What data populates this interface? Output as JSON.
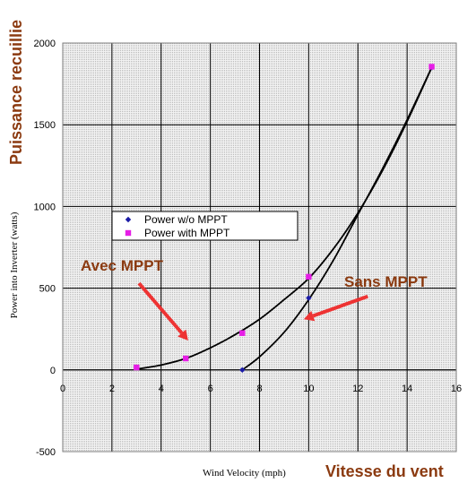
{
  "chart_data": {
    "type": "scatter",
    "x_axis": {
      "label": "Wind Velocity (mph)",
      "label_fr": "Vitesse du vent",
      "range": [
        0,
        16
      ],
      "ticks": [
        "0",
        "2",
        "4",
        "6",
        "8",
        "10",
        "12",
        "14",
        "16"
      ]
    },
    "y_axis": {
      "label": "Power into Inverter (watts)",
      "label_fr": "Puissance recuillie",
      "range": [
        -500,
        2000
      ],
      "ticks": [
        "-500",
        "0",
        "500",
        "1000",
        "1500",
        "2000"
      ]
    },
    "grid": true,
    "series": [
      {
        "name": "Power w/o MPPT",
        "marker": "diamond",
        "color": "#1a1aa6",
        "points": [
          [
            7.3,
            0
          ],
          [
            10.0,
            440
          ],
          [
            15.0,
            1850
          ]
        ]
      },
      {
        "name": "Power with MPPT",
        "marker": "square",
        "color": "#e61ee6",
        "points": [
          [
            3.0,
            15
          ],
          [
            5.0,
            70
          ],
          [
            7.3,
            225
          ],
          [
            10.0,
            570
          ],
          [
            15.0,
            1855
          ]
        ]
      }
    ],
    "trendlines": [
      {
        "series": "Power w/o MPPT",
        "color": "#000000",
        "points": [
          [
            7.3,
            0
          ],
          [
            8.0,
            80
          ],
          [
            9.0,
            230
          ],
          [
            10.0,
            430
          ],
          [
            11.0,
            670
          ],
          [
            12.0,
            950
          ],
          [
            13.0,
            1230
          ],
          [
            14.0,
            1530
          ],
          [
            15.0,
            1850
          ]
        ]
      },
      {
        "series": "Power with MPPT",
        "color": "#000000",
        "points": [
          [
            3.0,
            5
          ],
          [
            4.0,
            30
          ],
          [
            5.0,
            70
          ],
          [
            6.0,
            135
          ],
          [
            7.0,
            215
          ],
          [
            8.0,
            310
          ],
          [
            9.0,
            430
          ],
          [
            10.0,
            560
          ],
          [
            11.0,
            740
          ],
          [
            12.0,
            960
          ],
          [
            13.0,
            1220
          ],
          [
            14.0,
            1520
          ],
          [
            15.0,
            1850
          ]
        ]
      }
    ],
    "legend": {
      "placement": "left-middle"
    },
    "annotations": [
      {
        "text": "Avec MPPT",
        "color": "#8B3A10",
        "arrow_color": "#ee3333",
        "arrow_from": [
          3.1,
          530
        ],
        "arrow_to": [
          5.1,
          180
        ]
      },
      {
        "text": "Sans MPPT",
        "color": "#8B3A10",
        "arrow_color": "#ee3333",
        "arrow_from": [
          12.4,
          450
        ],
        "arrow_to": [
          9.8,
          310
        ]
      }
    ]
  }
}
